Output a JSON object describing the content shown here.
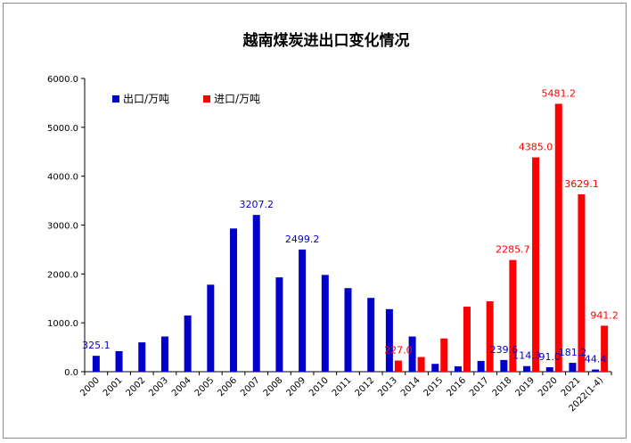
{
  "chart_data": {
    "type": "bar",
    "title": "越南煤炭进出口变化情况",
    "xlabel": "",
    "ylabel": "",
    "ylim": [
      0,
      6000
    ],
    "yticks": [
      "0.0",
      "1000.0",
      "2000.0",
      "3000.0",
      "4000.0",
      "5000.0",
      "6000.0"
    ],
    "grid": false,
    "legend_position": "top-left",
    "categories": [
      "2000",
      "2001",
      "2002",
      "2003",
      "2004",
      "2005",
      "2006",
      "2007",
      "2008",
      "2009",
      "2010",
      "2011",
      "2012",
      "2013",
      "2014",
      "2015",
      "2016",
      "2017",
      "2018",
      "2019",
      "2020",
      "2021",
      "2022(1-4)"
    ],
    "series": [
      {
        "name": "出口/万吨",
        "color": "#0000cc",
        "values": [
          325.1,
          420,
          600,
          720,
          1150,
          1780,
          2930,
          3207.2,
          1930,
          2499.2,
          1980,
          1710,
          1510,
          1280,
          720,
          160,
          110,
          220,
          239.6,
          114.3,
          91.0,
          181.2,
          44.4
        ],
        "labels": {
          "0": "325.1",
          "7": "3207.2",
          "9": "2499.2",
          "18": "239.6",
          "19": "114.3",
          "20": "91.0",
          "21": "181.2",
          "22": "44.4"
        }
      },
      {
        "name": "进口/万吨",
        "color": "#ff0000",
        "values": [
          null,
          null,
          null,
          null,
          null,
          null,
          null,
          null,
          null,
          null,
          null,
          null,
          null,
          227.0,
          300,
          680,
          1330,
          1440,
          2285.7,
          4385.0,
          5481.2,
          3629.1,
          941.2
        ],
        "labels": {
          "13": "227.0",
          "18": "2285.7",
          "19": "4385.0",
          "20": "5481.2",
          "21": "3629.1",
          "22": "941.2"
        }
      }
    ]
  }
}
